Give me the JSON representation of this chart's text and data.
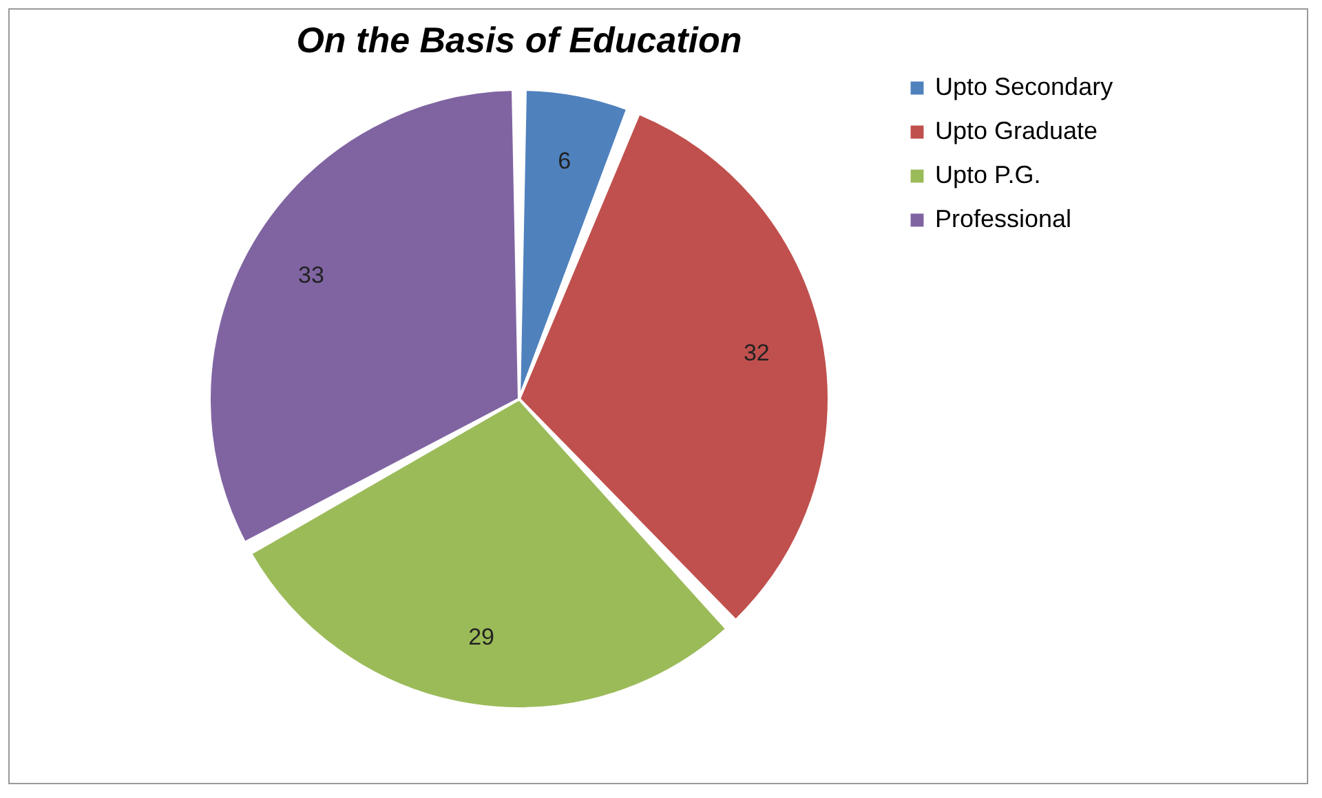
{
  "chart_data": {
    "type": "pie",
    "title": "On the Basis of Education",
    "categories": [
      "Upto Secondary",
      "Upto Graduate",
      "Upto P.G.",
      "Professional"
    ],
    "values": [
      6,
      32,
      29,
      33
    ],
    "colors": [
      "#4f81bd",
      "#c0504d",
      "#9bbb59",
      "#8064a2"
    ],
    "data_labels": true,
    "legend": "right"
  }
}
